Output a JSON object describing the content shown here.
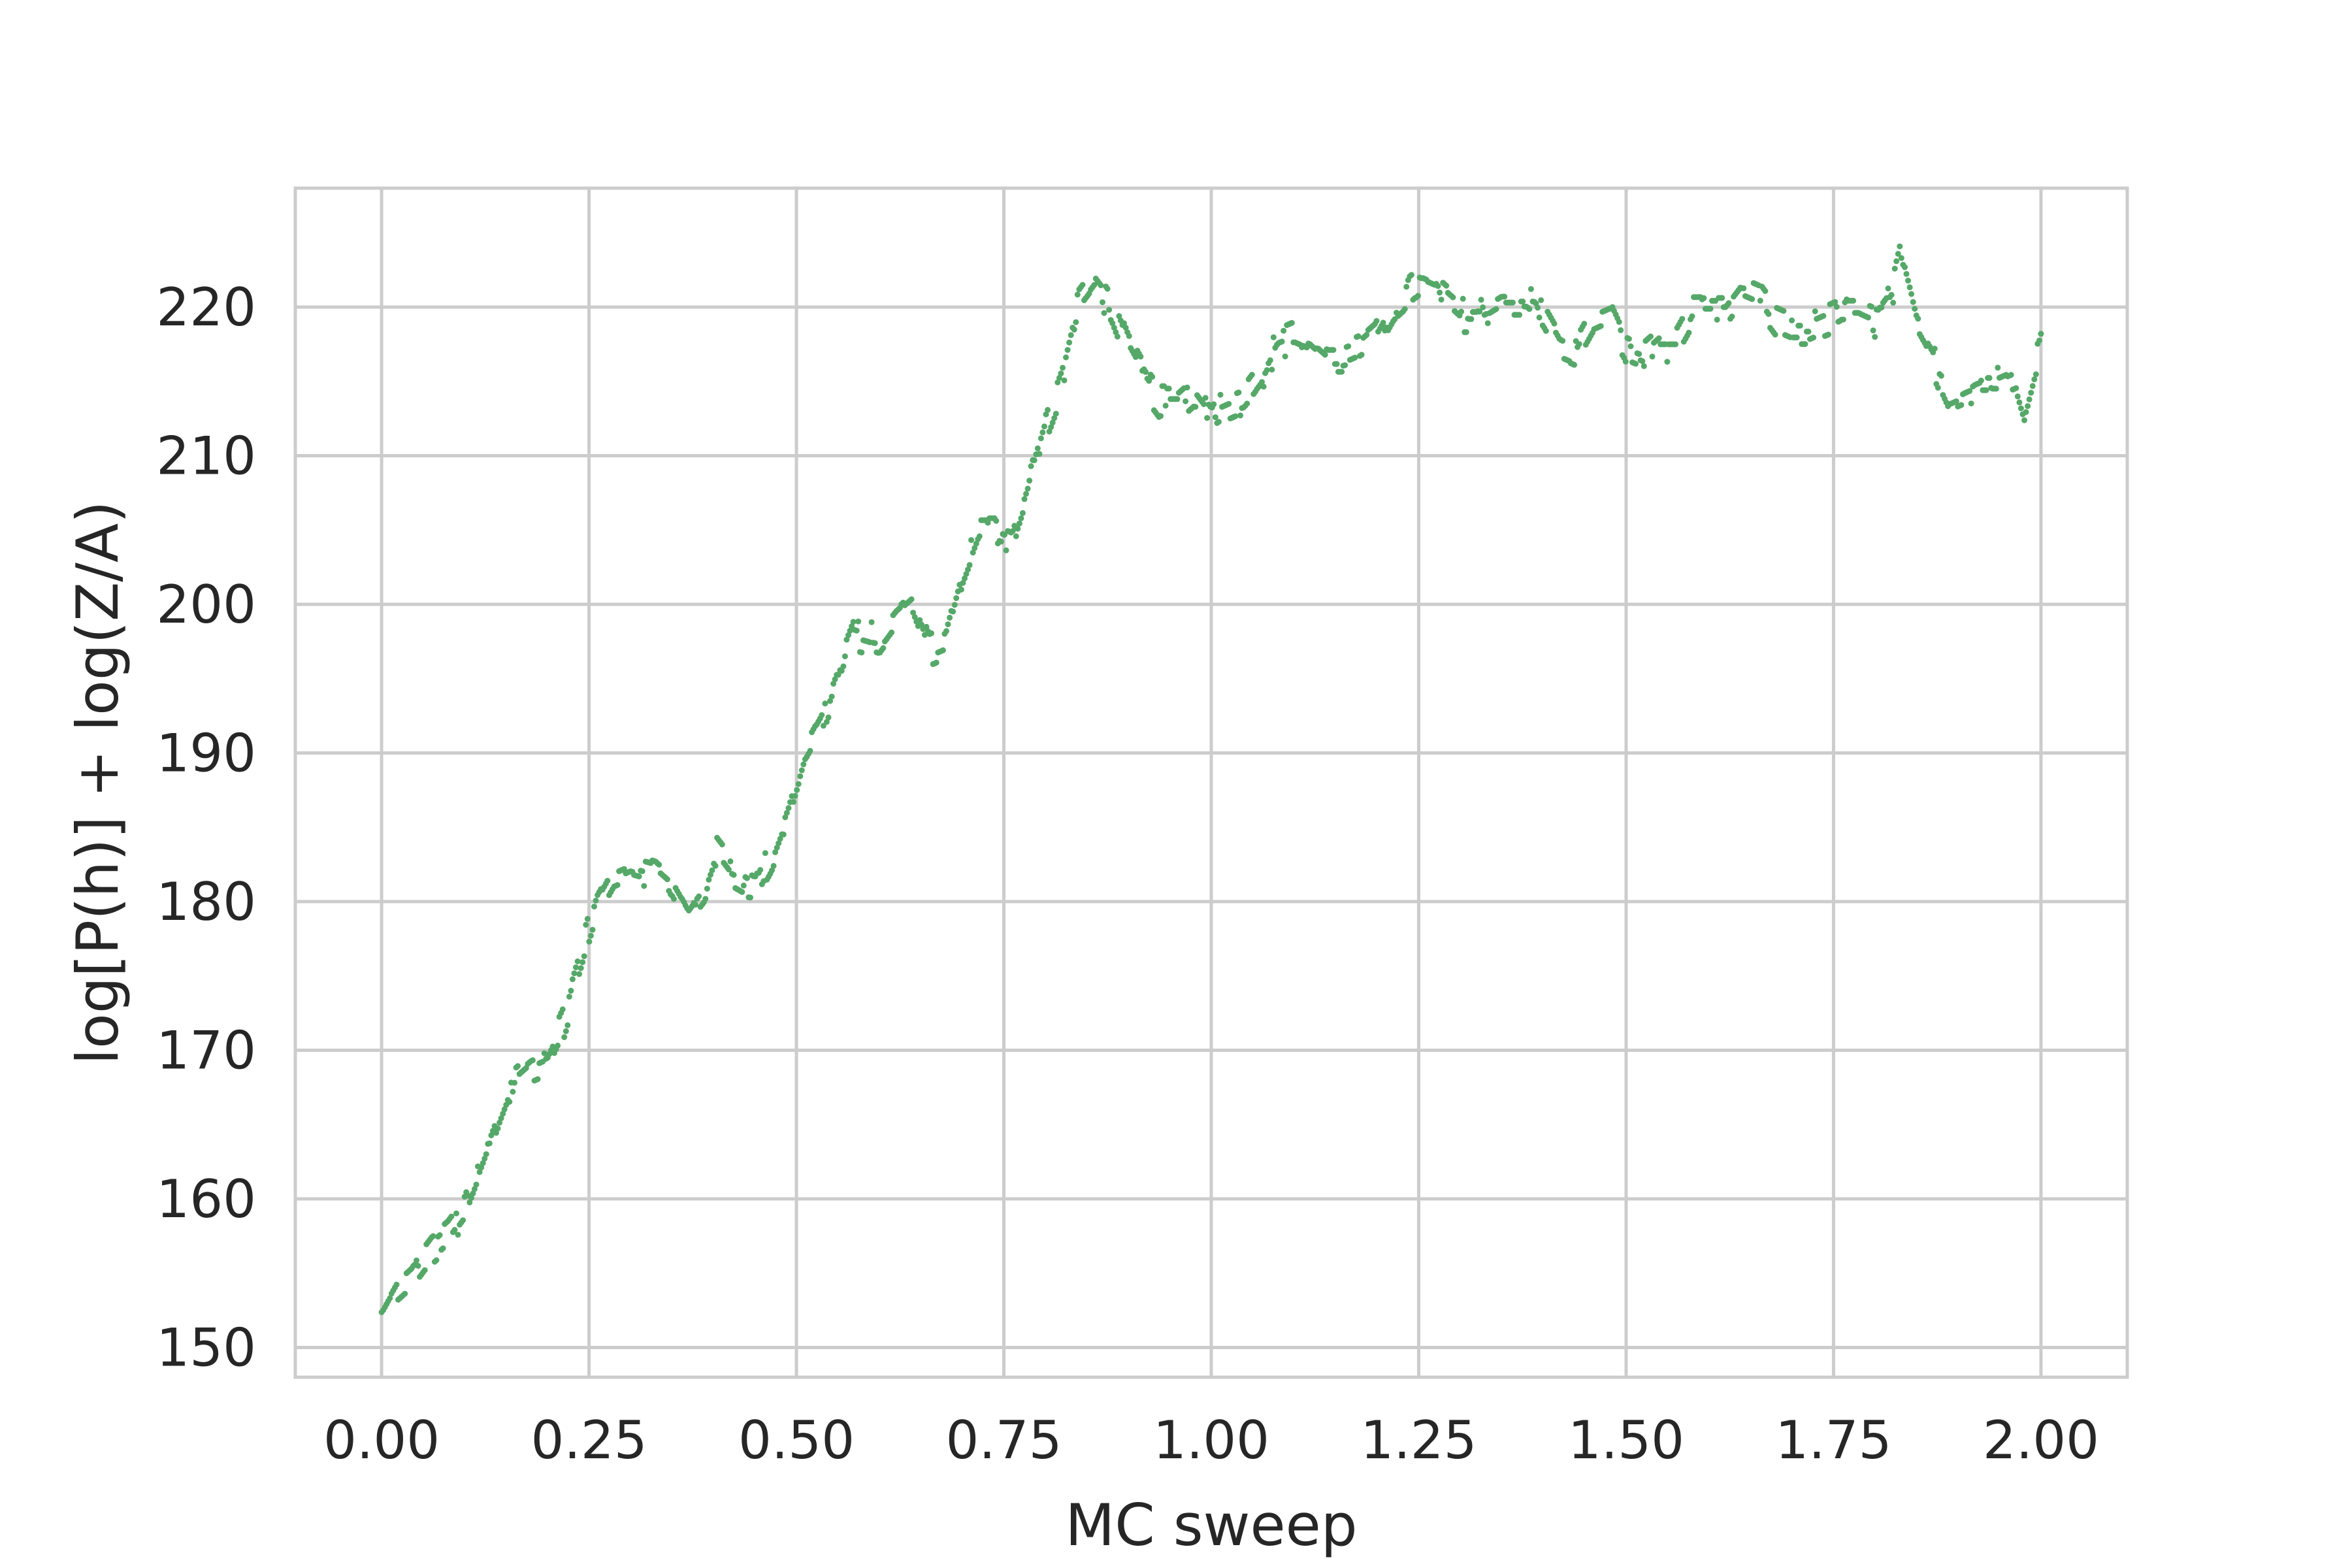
{
  "chart_data": {
    "type": "scatter",
    "title": "",
    "xlabel": "MC sweep",
    "ylabel": "log[P(h)] + log(Z/A)",
    "xlim": [
      -0.104,
      2.104
    ],
    "ylim": [
      148,
      228
    ],
    "grid": true,
    "legend": "none",
    "marker_color": "#55a868",
    "xticks": [
      0.0,
      0.25,
      0.5,
      0.75,
      1.0,
      1.25,
      1.5,
      1.75,
      2.0
    ],
    "xtick_labels": [
      "0.00",
      "0.25",
      "0.50",
      "0.75",
      "1.00",
      "1.25",
      "1.50",
      "1.75",
      "2.00"
    ],
    "yticks": [
      150,
      160,
      170,
      180,
      190,
      200,
      210,
      220
    ],
    "ytick_labels": [
      "150",
      "160",
      "170",
      "180",
      "190",
      "200",
      "210",
      "220"
    ],
    "trend": [
      [
        0.0,
        152
      ],
      [
        0.02,
        154
      ],
      [
        0.04,
        155
      ],
      [
        0.06,
        156.5
      ],
      [
        0.08,
        157.5
      ],
      [
        0.1,
        159
      ],
      [
        0.12,
        162
      ],
      [
        0.14,
        165
      ],
      [
        0.16,
        168
      ],
      [
        0.18,
        169
      ],
      [
        0.2,
        169.5
      ],
      [
        0.22,
        172
      ],
      [
        0.24,
        176
      ],
      [
        0.26,
        180
      ],
      [
        0.28,
        182
      ],
      [
        0.3,
        182.5
      ],
      [
        0.33,
        182
      ],
      [
        0.35,
        181
      ],
      [
        0.37,
        179
      ],
      [
        0.39,
        180.5
      ],
      [
        0.4,
        183.5
      ],
      [
        0.42,
        182
      ],
      [
        0.45,
        181
      ],
      [
        0.47,
        183
      ],
      [
        0.49,
        186
      ],
      [
        0.51,
        190
      ],
      [
        0.53,
        192
      ],
      [
        0.55,
        195
      ],
      [
        0.57,
        198
      ],
      [
        0.6,
        197.5
      ],
      [
        0.62,
        199
      ],
      [
        0.64,
        200
      ],
      [
        0.66,
        197
      ],
      [
        0.68,
        197.5
      ],
      [
        0.7,
        202
      ],
      [
        0.72,
        205
      ],
      [
        0.74,
        205
      ],
      [
        0.76,
        204.5
      ],
      [
        0.78,
        208
      ],
      [
        0.8,
        212
      ],
      [
        0.82,
        215
      ],
      [
        0.84,
        220
      ],
      [
        0.86,
        221.5
      ],
      [
        0.88,
        220
      ],
      [
        0.9,
        217
      ],
      [
        0.92,
        215
      ],
      [
        0.94,
        213.5
      ],
      [
        0.96,
        213.5
      ],
      [
        0.98,
        214.5
      ],
      [
        1.0,
        213
      ],
      [
        1.02,
        213.5
      ],
      [
        1.04,
        214
      ],
      [
        1.06,
        215.5
      ],
      [
        1.08,
        217.5
      ],
      [
        1.1,
        218
      ],
      [
        1.12,
        217.5
      ],
      [
        1.14,
        216.5
      ],
      [
        1.16,
        216.5
      ],
      [
        1.18,
        217
      ],
      [
        1.2,
        218
      ],
      [
        1.22,
        220
      ],
      [
        1.25,
        221.5
      ],
      [
        1.27,
        221
      ],
      [
        1.3,
        219.5
      ],
      [
        1.32,
        219.5
      ],
      [
        1.35,
        220.5
      ],
      [
        1.38,
        220.5
      ],
      [
        1.4,
        219.5
      ],
      [
        1.42,
        217.5
      ],
      [
        1.44,
        217
      ],
      [
        1.46,
        219
      ],
      [
        1.48,
        219.5
      ],
      [
        1.5,
        217
      ],
      [
        1.52,
        216.5
      ],
      [
        1.54,
        217.5
      ],
      [
        1.56,
        217.5
      ],
      [
        1.58,
        219.5
      ],
      [
        1.6,
        219.5
      ],
      [
        1.62,
        219.5
      ],
      [
        1.64,
        221
      ],
      [
        1.66,
        220.5
      ],
      [
        1.68,
        219
      ],
      [
        1.7,
        218.5
      ],
      [
        1.72,
        218.5
      ],
      [
        1.74,
        219
      ],
      [
        1.76,
        219.5
      ],
      [
        1.78,
        219.5
      ],
      [
        1.8,
        219
      ],
      [
        1.82,
        220.5
      ],
      [
        1.83,
        223
      ],
      [
        1.85,
        218.5
      ],
      [
        1.87,
        216.5
      ],
      [
        1.89,
        214
      ],
      [
        1.91,
        214.5
      ],
      [
        1.93,
        215
      ],
      [
        1.95,
        215
      ],
      [
        1.97,
        215.5
      ],
      [
        1.98,
        213.5
      ],
      [
        2.0,
        218
      ]
    ],
    "noise_amplitude": 1.2,
    "n_points": 1000
  }
}
